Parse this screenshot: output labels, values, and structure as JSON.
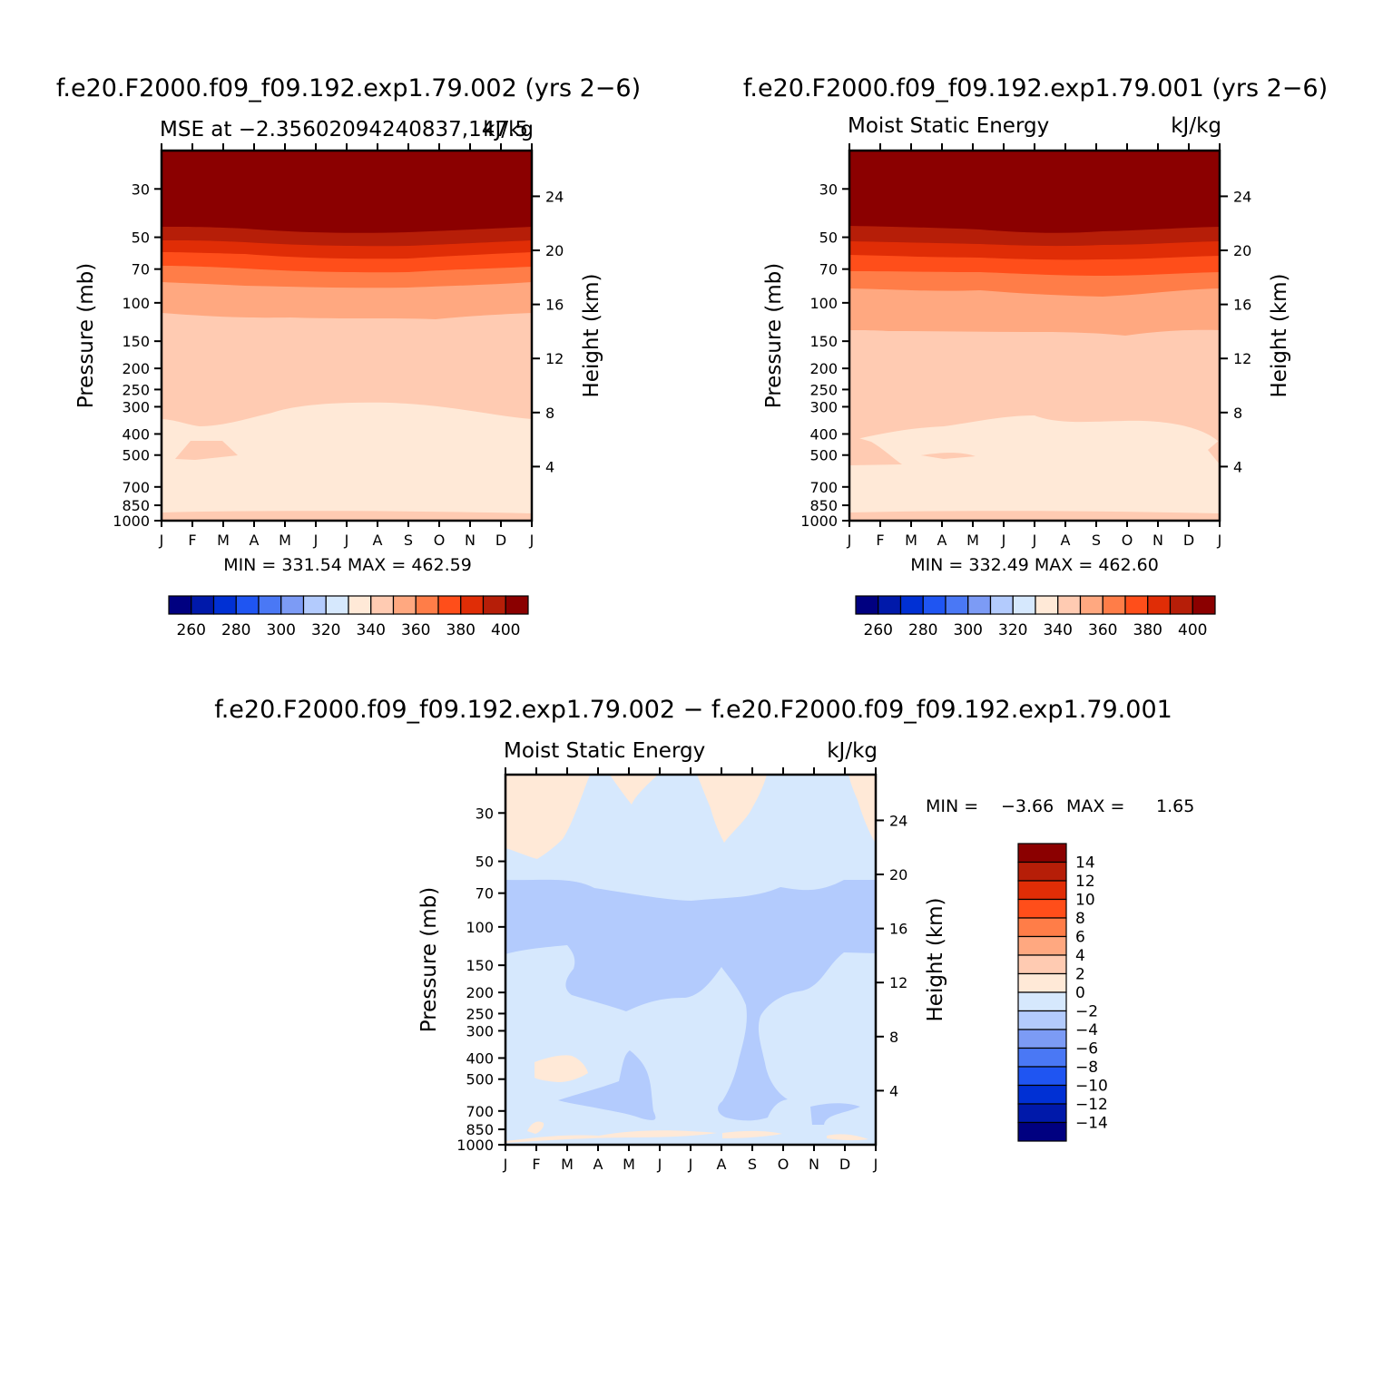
{
  "page_titles": {
    "left": "f.e20.F2000.f09_f09.192.exp1.79.002 (yrs 2−6)",
    "right": "f.e20.F2000.f09_f09.192.exp1.79.001 (yrs 2−6)",
    "diff": "f.e20.F2000.f09_f09.192.exp1.79.002 − f.e20.F2000.f09_f09.192.exp1.79.001"
  },
  "colors": {
    "levels": [
      "#000080",
      "#0019aa",
      "#0030d4",
      "#1f55f2",
      "#4a78f5",
      "#7c9bf5",
      "#b3cbfd",
      "#d6e8fd",
      "#ffe9d7",
      "#ffcbb2",
      "#ffa880",
      "#ff7d48",
      "#ff4e1a",
      "#e02d06",
      "#b61e08",
      "#8b0000"
    ]
  },
  "chart_data": [
    {
      "type": "heatmap",
      "subtitle_left": "MSE at −2.35602094240837,147.5",
      "subtitle_right": "kJ/kg",
      "ylabel": "Pressure (mb)",
      "ylabel_right": "Height (km)",
      "x_ticks": [
        "J",
        "F",
        "M",
        "A",
        "M",
        "J",
        "J",
        "A",
        "S",
        "O",
        "N",
        "D",
        "J"
      ],
      "y_ticks": [
        "30",
        "50",
        "70",
        "100",
        "150",
        "200",
        "250",
        "300",
        "400",
        "500",
        "700",
        "850",
        "1000"
      ],
      "y_ticks_right": [
        "24",
        "20",
        "16",
        "12",
        "8",
        "4"
      ],
      "min_max_text": "MIN = 331.54 MAX = 462.59",
      "colorbar_labels": [
        "260",
        "280",
        "300",
        "320",
        "340",
        "360",
        "380",
        "400"
      ],
      "colorbar_orientation": "horizontal",
      "shading_profile_kJ_per_kg": {
        "pressure_mb": [
          30,
          50,
          70,
          100,
          150,
          300,
          500,
          850,
          1000
        ],
        "values": [
          462,
          400,
          385,
          360,
          345,
          338,
          332,
          333,
          345
        ]
      }
    },
    {
      "type": "heatmap",
      "subtitle_left": "Moist Static Energy",
      "subtitle_right": "kJ/kg",
      "ylabel": "Pressure (mb)",
      "ylabel_right": "Height (km)",
      "x_ticks": [
        "J",
        "F",
        "M",
        "A",
        "M",
        "J",
        "J",
        "A",
        "S",
        "O",
        "N",
        "D",
        "J"
      ],
      "y_ticks": [
        "30",
        "50",
        "70",
        "100",
        "150",
        "200",
        "250",
        "300",
        "400",
        "500",
        "700",
        "850",
        "1000"
      ],
      "y_ticks_right": [
        "24",
        "20",
        "16",
        "12",
        "8",
        "4"
      ],
      "min_max_text": "MIN = 332.49 MAX = 462.60",
      "colorbar_labels": [
        "260",
        "280",
        "300",
        "320",
        "340",
        "360",
        "380",
        "400"
      ],
      "colorbar_orientation": "horizontal"
    },
    {
      "type": "heatmap",
      "subtitle_left": "Moist Static Energy",
      "subtitle_right": "kJ/kg",
      "ylabel": "Pressure (mb)",
      "ylabel_right": "Height (km)",
      "x_ticks": [
        "J",
        "F",
        "M",
        "A",
        "M",
        "J",
        "J",
        "A",
        "S",
        "O",
        "N",
        "D",
        "J"
      ],
      "y_ticks": [
        "30",
        "50",
        "70",
        "100",
        "150",
        "200",
        "250",
        "300",
        "400",
        "500",
        "700",
        "850",
        "1000"
      ],
      "y_ticks_right": [
        "24",
        "20",
        "16",
        "12",
        "8",
        "4"
      ],
      "min_label": "MIN =",
      "min_value": "−3.66",
      "max_label": "MAX =",
      "max_value": "1.65",
      "colorbar_labels": [
        "14",
        "12",
        "10",
        "8",
        "6",
        "4",
        "2",
        "0",
        "−2",
        "−4",
        "−6",
        "−8",
        "−10",
        "−12",
        "−14"
      ],
      "colorbar_orientation": "vertical"
    }
  ]
}
